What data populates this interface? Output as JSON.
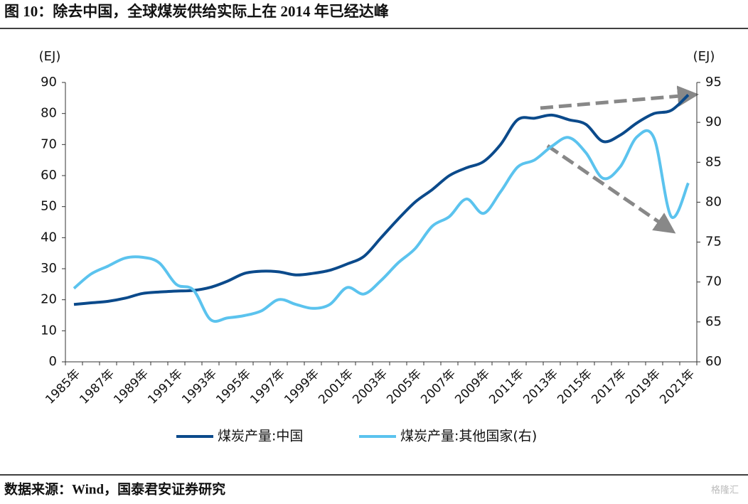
{
  "title": "图 10：除去中国，全球煤炭供给实际上在 2014 年已经达峰",
  "source": "数据来源：Wind，国泰君安证券研究",
  "watermark": "格隆汇",
  "chart_data": {
    "type": "line",
    "y_unit": "(EJ)",
    "y2_unit": "(EJ)",
    "categories": [
      "1985年",
      null,
      "1987年",
      null,
      "1989年",
      null,
      "1991年",
      null,
      "1993年",
      null,
      "1995年",
      null,
      "1997年",
      null,
      "1999年",
      null,
      "2001年",
      null,
      "2003年",
      null,
      "2005年",
      null,
      "2007年",
      null,
      "2009年",
      null,
      "2011年",
      null,
      "2013年",
      null,
      "2015年",
      null,
      "2017年",
      null,
      "2019年",
      null,
      "2021年"
    ],
    "series": [
      {
        "name": "煤炭产量:中国",
        "color": "#0b4a8b",
        "axis": "y",
        "values": [
          18.5,
          19,
          19.5,
          20.5,
          22,
          22.5,
          22.8,
          23,
          24,
          26,
          28.5,
          29.2,
          29,
          28,
          28.5,
          29.5,
          31.5,
          34,
          40,
          46,
          51.5,
          55.5,
          60,
          62.5,
          64.5,
          70,
          78,
          78.5,
          79.5,
          78,
          76.5,
          71,
          73,
          77,
          80,
          81,
          86
        ]
      },
      {
        "name": "煤炭产量:其他国家(右)",
        "color": "#5bc3ee",
        "axis": "y2",
        "values": [
          69.2,
          71,
          72,
          73,
          73.1,
          72.4,
          69.7,
          69,
          65.3,
          65.5,
          65.8,
          66.4,
          67.8,
          67.2,
          66.7,
          67.2,
          69.3,
          68.5,
          70.2,
          72.4,
          74.2,
          77,
          78.2,
          80.4,
          78.6,
          81.3,
          84.4,
          85.3,
          87,
          88.1,
          86.2,
          83,
          84.4,
          88.2,
          88,
          78.2,
          82.4
        ]
      }
    ],
    "ylim": [
      0,
      90
    ],
    "yticks": [
      0,
      10,
      20,
      30,
      40,
      50,
      60,
      70,
      80,
      90
    ],
    "y2lim": [
      60,
      95
    ],
    "y2ticks": [
      60,
      65,
      70,
      75,
      80,
      85,
      90,
      95
    ],
    "legend": "bottom"
  }
}
